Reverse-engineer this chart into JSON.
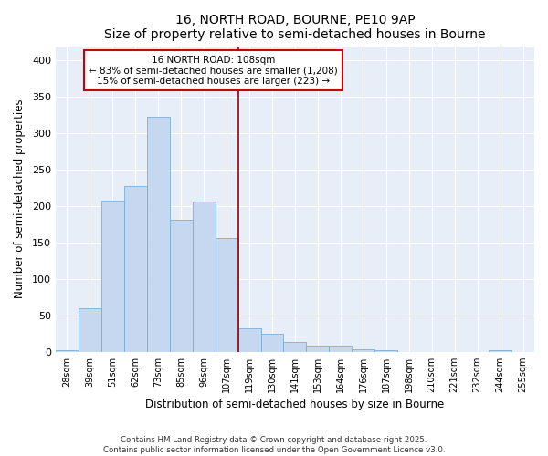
{
  "title1": "16, NORTH ROAD, BOURNE, PE10 9AP",
  "title2": "Size of property relative to semi-detached houses in Bourne",
  "xlabel": "Distribution of semi-detached houses by size in Bourne",
  "ylabel": "Number of semi-detached properties",
  "categories": [
    "28sqm",
    "39sqm",
    "51sqm",
    "62sqm",
    "73sqm",
    "85sqm",
    "96sqm",
    "107sqm",
    "119sqm",
    "130sqm",
    "141sqm",
    "153sqm",
    "164sqm",
    "176sqm",
    "187sqm",
    "198sqm",
    "210sqm",
    "221sqm",
    "232sqm",
    "244sqm",
    "255sqm"
  ],
  "values": [
    2,
    60,
    208,
    228,
    323,
    181,
    207,
    156,
    32,
    25,
    14,
    8,
    8,
    3,
    2,
    0,
    0,
    0,
    0,
    2,
    0
  ],
  "bar_color": "#c5d8ef",
  "bar_edgecolor": "#7aafd4",
  "vline_x_idx": 7,
  "vline_color": "#990000",
  "annotation_title": "16 NORTH ROAD: 108sqm",
  "annotation_line1": "← 83% of semi-detached houses are smaller (1,208)",
  "annotation_line2": "15% of semi-detached houses are larger (223) →",
  "box_edgecolor": "#cc0000",
  "ylim": [
    0,
    420
  ],
  "yticks": [
    0,
    50,
    100,
    150,
    200,
    250,
    300,
    350,
    400
  ],
  "background_color": "#e8eef8",
  "grid_color": "#ffffff",
  "footer1": "Contains HM Land Registry data © Crown copyright and database right 2025.",
  "footer2": "Contains public sector information licensed under the Open Government Licence v3.0."
}
